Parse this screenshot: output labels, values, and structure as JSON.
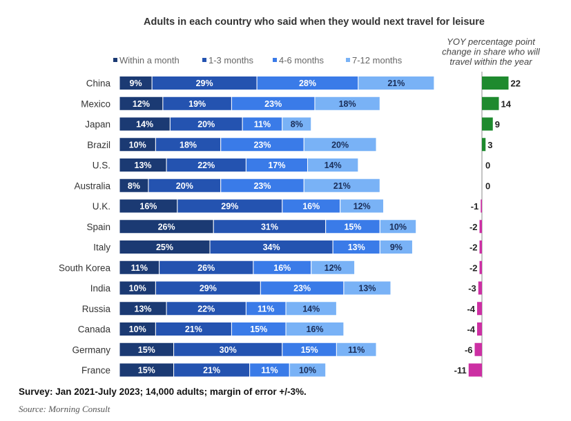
{
  "chart_data": {
    "type": "bar",
    "stacked": true,
    "orientation": "horizontal",
    "title": "Adults in each country who said when they would next travel for leisure",
    "categories": [
      "China",
      "Mexico",
      "Japan",
      "Brazil",
      "U.S.",
      "Australia",
      "U.K.",
      "Spain",
      "Italy",
      "South Korea",
      "India",
      "Russia",
      "Canada",
      "Germany",
      "France"
    ],
    "series": [
      {
        "name": "Within a month",
        "color": "#1b3a73",
        "label_color": "#ffffff",
        "values": [
          9,
          12,
          14,
          10,
          13,
          8,
          16,
          26,
          25,
          11,
          10,
          13,
          10,
          15,
          15
        ]
      },
      {
        "name": "1-3 months",
        "color": "#2453b0",
        "label_color": "#ffffff",
        "values": [
          29,
          19,
          20,
          18,
          22,
          20,
          29,
          31,
          34,
          26,
          29,
          22,
          21,
          30,
          21
        ]
      },
      {
        "name": "4-6 months",
        "color": "#3a7be8",
        "label_color": "#ffffff",
        "values": [
          28,
          23,
          11,
          23,
          17,
          23,
          16,
          15,
          13,
          16,
          23,
          11,
          15,
          15,
          11
        ]
      },
      {
        "name": "7-12 months",
        "color": "#79b2f6",
        "label_color": "#1a2d57",
        "values": [
          21,
          18,
          8,
          20,
          14,
          21,
          12,
          10,
          9,
          12,
          13,
          14,
          16,
          11,
          10
        ]
      }
    ],
    "value_suffix": "%",
    "yoy": {
      "title": [
        "YOY percentage point",
        "change in share who will",
        "travel within the year"
      ],
      "values": [
        22,
        14,
        9,
        3,
        0,
        0,
        -1,
        -2,
        -2,
        -2,
        -3,
        -4,
        -4,
        -6,
        -11
      ],
      "positive_color": "#1e8a2e",
      "negative_color": "#cc2fa3"
    }
  },
  "footer": {
    "note": "Survey: Jan 2021-July 2023; 14,000 adults; margin of error +/-3%.",
    "source": "Source: Morning Consult"
  }
}
